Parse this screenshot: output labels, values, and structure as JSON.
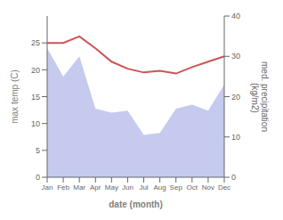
{
  "chart_data": {
    "type": "line",
    "categories": [
      "Jan",
      "Feb",
      "Mar",
      "Apr",
      "May",
      "Jun",
      "Jul",
      "Aug",
      "Sep",
      "Oct",
      "Nov",
      "Dec"
    ],
    "xlabel": "date (month)",
    "ylabel": "max temp (C)",
    "y2label": "med. precipitation\n (kg/m2)",
    "ylim": [
      0,
      30
    ],
    "yticks": [
      0,
      5,
      10,
      15,
      20,
      25
    ],
    "y2lim": [
      0,
      40
    ],
    "y2ticks": [
      0,
      10,
      20,
      30,
      40
    ],
    "series": [
      {
        "type": "area",
        "color": "#c5caee",
        "axis": "y2",
        "values": [
          32.0,
          25.0,
          30.0,
          17.0,
          16.0,
          16.5,
          10.5,
          11.0,
          17.0,
          18.0,
          16.5,
          23.0
        ]
      },
      {
        "type": "line",
        "color": "#cc5555",
        "values": [
          25.0,
          25.0,
          26.2,
          24.0,
          21.5,
          20.2,
          19.5,
          19.8,
          19.3,
          20.5,
          21.5,
          22.5
        ]
      }
    ]
  }
}
